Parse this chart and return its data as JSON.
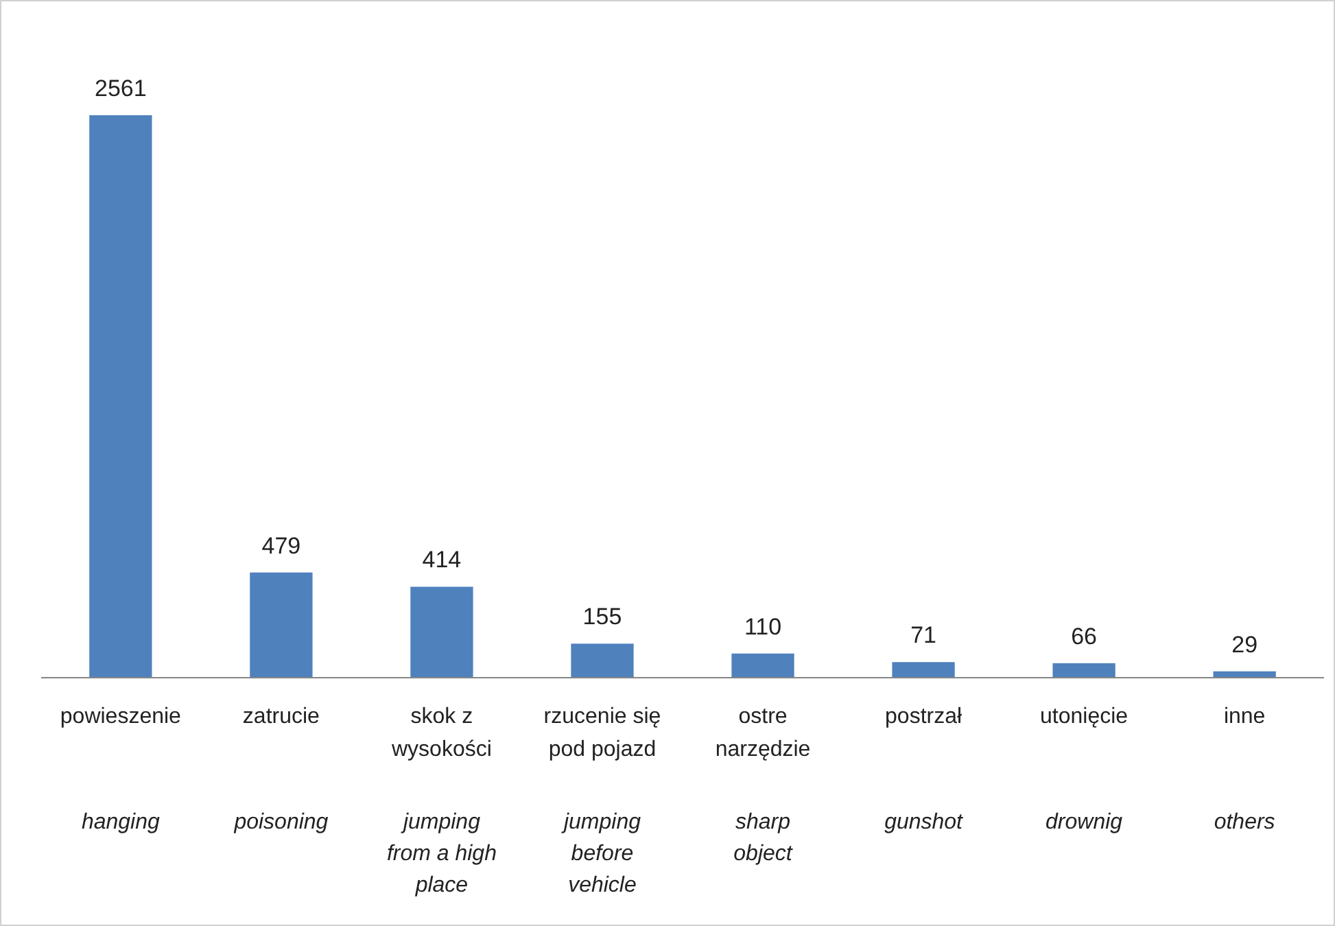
{
  "chart_data": {
    "type": "bar",
    "categories": [
      "powieszenie",
      "zatrucie",
      "skok z wysokości",
      "rzucenie się pod pojazd",
      "ostre narzędzie",
      "postrzał",
      "utonięcie",
      "inne"
    ],
    "values": [
      2561,
      479,
      414,
      155,
      110,
      71,
      66,
      29
    ],
    "color": "#4f81bd",
    "data_labels": true,
    "annotations": [
      "hanging",
      "poisoning",
      "jumping from a high place",
      "jumping before vehicle",
      "sharp object",
      "gunshot",
      "drownig",
      "others"
    ]
  }
}
